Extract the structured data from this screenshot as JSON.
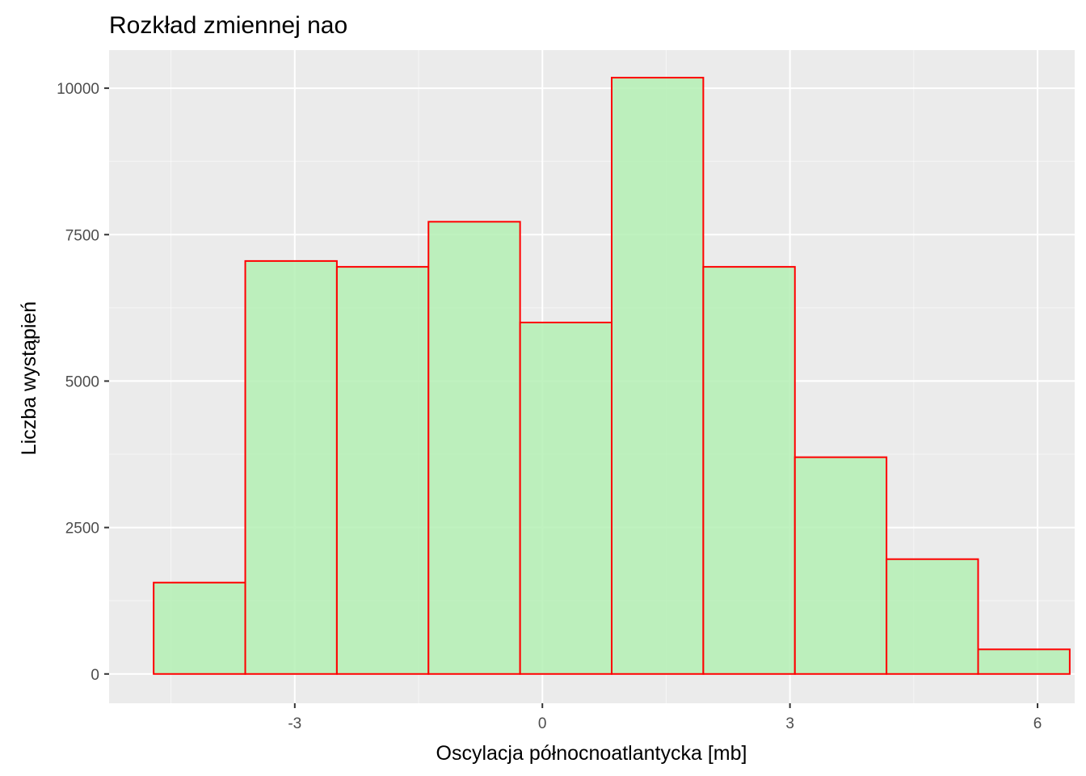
{
  "chart_data": {
    "type": "bar",
    "title": "Rozkład zmiennej nao",
    "xlabel": "Oscylacja północnoatlantycka [mb]",
    "ylabel": "Liczba wystąpień",
    "xlim": [
      -5.25,
      6.45
    ],
    "ylim": [
      -500,
      10650
    ],
    "x_ticks": [
      -3,
      0,
      3,
      6
    ],
    "x_tick_labels": [
      "-3",
      "0",
      "3",
      "6"
    ],
    "y_ticks": [
      0,
      2500,
      5000,
      7500,
      10000
    ],
    "y_tick_labels": [
      "0",
      "2500",
      "5000",
      "7500",
      "10000"
    ],
    "bins": [
      {
        "x0": -4.71,
        "x1": -3.6,
        "count": 1560
      },
      {
        "x0": -3.6,
        "x1": -2.49,
        "count": 7050
      },
      {
        "x0": -2.49,
        "x1": -1.38,
        "count": 6950
      },
      {
        "x0": -1.38,
        "x1": -0.27,
        "count": 7720
      },
      {
        "x0": -0.27,
        "x1": 0.84,
        "count": 6000
      },
      {
        "x0": 0.84,
        "x1": 1.95,
        "count": 10180
      },
      {
        "x0": 1.95,
        "x1": 3.06,
        "count": 6950
      },
      {
        "x0": 3.06,
        "x1": 4.17,
        "count": 3700
      },
      {
        "x0": 4.17,
        "x1": 5.28,
        "count": 1960
      },
      {
        "x0": 5.28,
        "x1": 6.39,
        "count": 420
      }
    ],
    "grid": true,
    "legend": "none",
    "colors": {
      "panel_background": "#ebebeb",
      "grid_major": "#ffffff",
      "bar_fill": "#b4f0b4",
      "bar_outline": "#ff0000",
      "tick_mark": "#333333"
    }
  }
}
